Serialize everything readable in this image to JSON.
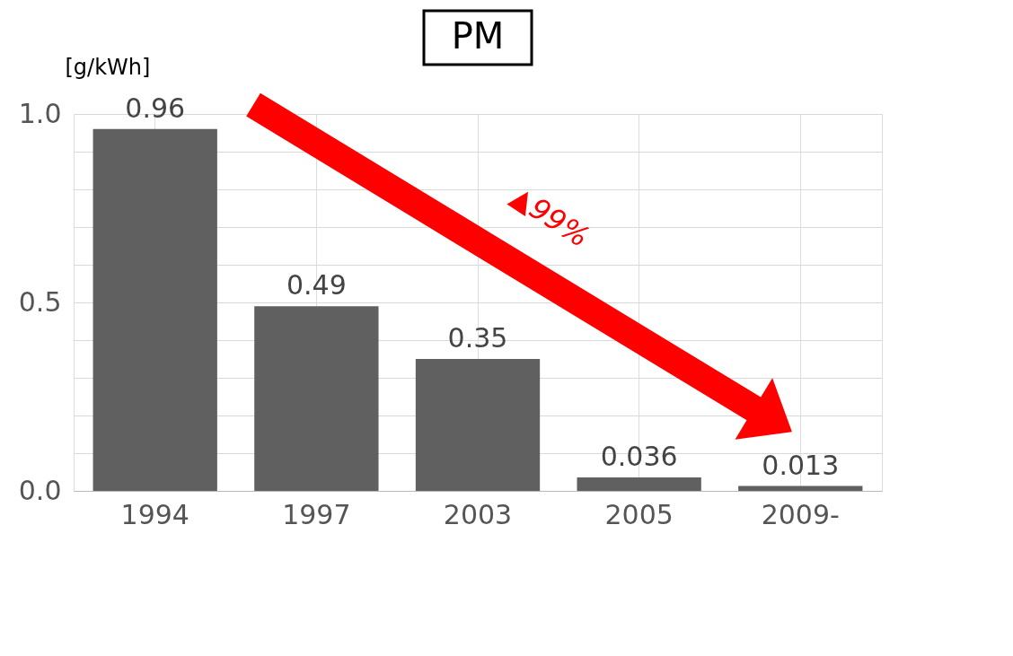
{
  "chart_data": {
    "type": "bar",
    "title": "PM",
    "ylabel": "[g/kWh]",
    "categories": [
      "1994",
      "1997",
      "2003",
      "2005",
      "2009-"
    ],
    "values": [
      0.96,
      0.49,
      0.35,
      0.036,
      0.013
    ],
    "color": "#606060",
    "ylim": [
      0,
      1.0
    ],
    "yticks": [
      {
        "value": 0,
        "label": "0.0"
      },
      {
        "value": 0.1,
        "label": null
      },
      {
        "value": 0.2,
        "label": null
      },
      {
        "value": 0.3,
        "label": null
      },
      {
        "value": 0.4,
        "label": null
      },
      {
        "value": 0.5,
        "label": "0.5"
      },
      {
        "value": 0.6,
        "label": null
      },
      {
        "value": 0.7,
        "label": null
      },
      {
        "value": 0.8,
        "label": null
      },
      {
        "value": 0.9,
        "label": null
      },
      {
        "value": 1.0,
        "label": "1.0"
      }
    ],
    "grid": true,
    "data_labels": true,
    "annotations": [
      "▲99%"
    ]
  }
}
